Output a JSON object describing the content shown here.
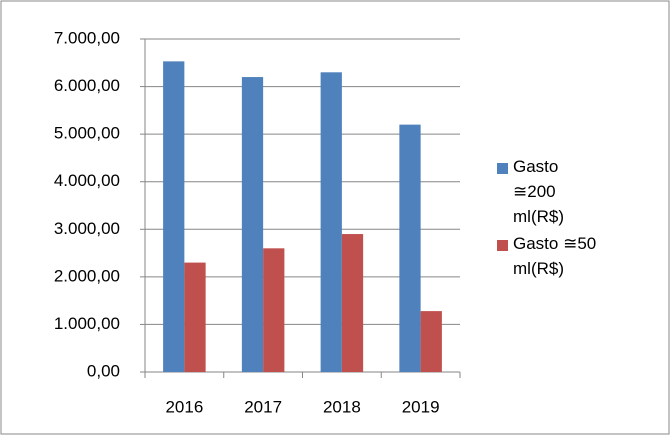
{
  "chart_data": {
    "type": "bar",
    "categories": [
      "2016",
      "2017",
      "2018",
      "2019"
    ],
    "series": [
      {
        "name": "Gasto ≅200 ml(R$)",
        "color": "#4f81bd",
        "values": [
          6530,
          6200,
          6300,
          5200
        ]
      },
      {
        "name": "Gasto ≅50 ml(R$)",
        "color": "#c0504d",
        "values": [
          2300,
          2600,
          2900,
          1280
        ]
      }
    ],
    "ylim": [
      0,
      7000
    ],
    "yticks": [
      {
        "value": 0,
        "label": "0,00"
      },
      {
        "value": 1000,
        "label": "1.000,00"
      },
      {
        "value": 2000,
        "label": "2.000,00"
      },
      {
        "value": 3000,
        "label": "3.000,00"
      },
      {
        "value": 4000,
        "label": "4.000,00"
      },
      {
        "value": 5000,
        "label": "5.000,00"
      },
      {
        "value": 6000,
        "label": "6.000,00"
      },
      {
        "value": 7000,
        "label": "7.000,00"
      }
    ],
    "grid": true,
    "legend": "right"
  }
}
